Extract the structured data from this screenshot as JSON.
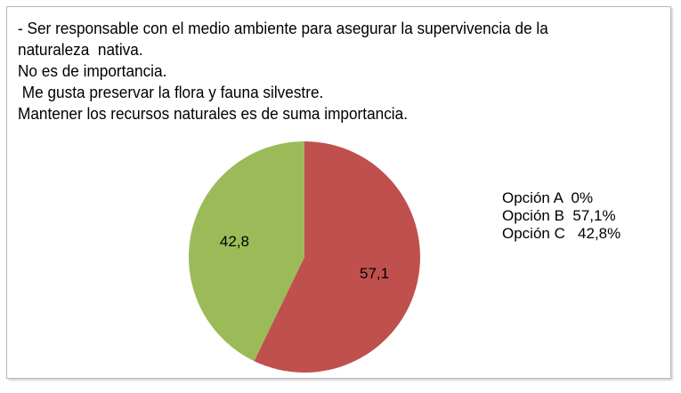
{
  "text_lines": [
    "- Ser responsable con el medio ambiente para asegurar la supervivencia de la",
    "naturaleza  nativa.",
    "No es de importancia.",
    " Me gusta preservar la flora y fauna silvestre.",
    "Mantener los recursos naturales es de suma importancia."
  ],
  "chart_data": {
    "type": "pie",
    "title": "",
    "slices": [
      {
        "label": "Opción A",
        "value": 0,
        "data_label": "",
        "color": "#C0504D"
      },
      {
        "label": "Opción B",
        "value": 57.1,
        "data_label": "57,1",
        "color": "#C0504D"
      },
      {
        "label": "Opción C",
        "value": 42.8,
        "data_label": "42,8",
        "color": "#9BBB59"
      }
    ],
    "legend": [
      "Opción A  0%",
      "Opción B  57,1%",
      "Opción C   42,8%"
    ],
    "legend_placement": "right"
  }
}
